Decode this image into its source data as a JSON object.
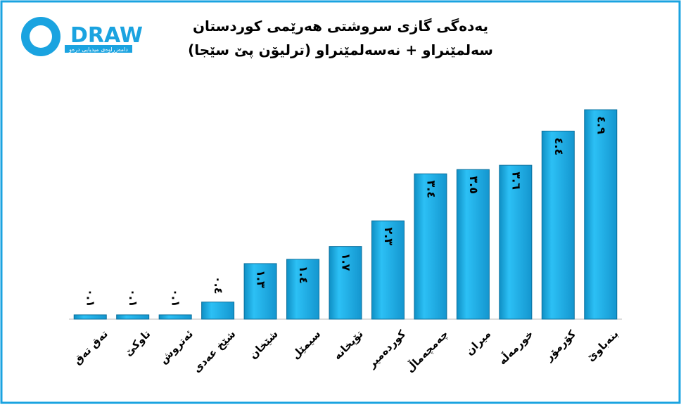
{
  "logo": {
    "text": "DRAW",
    "subtitle": "دامەزراوەی میدیایی درەو"
  },
  "chart_data": {
    "type": "bar",
    "title": "یەدەگی گازی سروشتی هەرێمی کوردستان",
    "subtitle": "سەلمێنراو + نەسەلمێنراو (ترلیۆن پێ سێجا)",
    "categories": [
      "تەق تەق",
      "تاوکێ",
      "ئەتروش",
      "شێخ عەدی",
      "شێخان",
      "سیمێل",
      "تۆپخانە",
      "کوردەمیر",
      "چەمچەماڵ",
      "میران",
      "خورمەڵە",
      "کۆرمۆر",
      "بنەباوێ"
    ],
    "values": [
      0.1,
      0.1,
      0.1,
      0.4,
      1.3,
      1.4,
      1.7,
      2.3,
      3.4,
      3.5,
      3.6,
      4.4,
      4.9
    ],
    "value_labels": [
      "٠.١",
      "٠.١",
      "٠.١",
      "٠.٤",
      "١.٣",
      "١.٤",
      "١.٧",
      "٢.٣",
      "٣.٤",
      "٣.٥",
      "٣.٦",
      "٤.٤",
      "٤.٩"
    ],
    "color": "#1cb0ec",
    "ylim": [
      0,
      5
    ]
  }
}
